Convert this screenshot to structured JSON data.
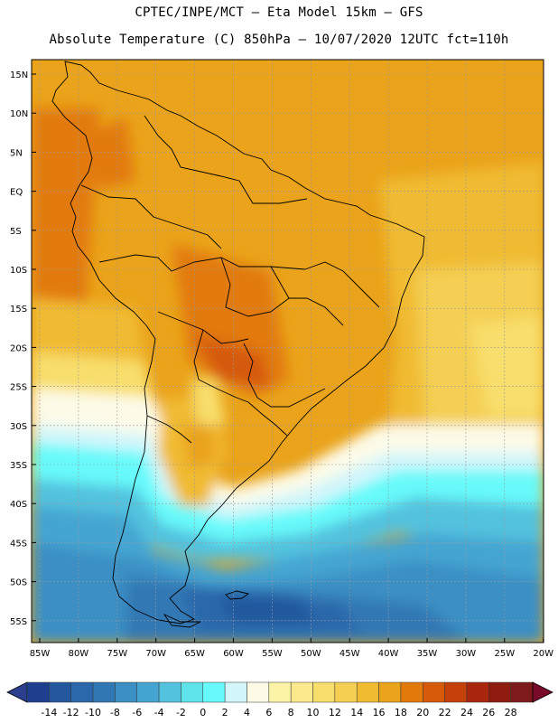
{
  "header": {
    "line1": "CPTEC/INPE/MCT –  Eta Model 15km – GFS",
    "line2": "Absolute Temperature (C) 850hPa – 10/07/2020 12UTC fct=110h"
  },
  "map": {
    "lat_labels": [
      "15N",
      "10N",
      "5N",
      "EQ",
      "5S",
      "10S",
      "15S",
      "20S",
      "25S",
      "30S",
      "35S",
      "40S",
      "45S",
      "50S",
      "55S"
    ],
    "lon_labels": [
      "85W",
      "80W",
      "75W",
      "70W",
      "65W",
      "60W",
      "55W",
      "50W",
      "45W",
      "40W",
      "35W",
      "30W",
      "25W",
      "20W"
    ]
  },
  "colorbar": {
    "labels": [
      "-14",
      "-12",
      "-10",
      "-8",
      "-6",
      "-4",
      "-2",
      "0",
      "2",
      "4",
      "6",
      "8",
      "10",
      "12",
      "14",
      "16",
      "18",
      "20",
      "22",
      "24",
      "26",
      "28"
    ],
    "colors": [
      "#1e3f8e",
      "#24589e",
      "#2b68ab",
      "#3078b4",
      "#3b8fc4",
      "#45a5d2",
      "#53c2de",
      "#5ee3ea",
      "#67fafa",
      "#d2f6fb",
      "#fdfbe8",
      "#fbf4a6",
      "#fbe98b",
      "#f8de6c",
      "#f4cf52",
      "#f0bb30",
      "#eaa31a",
      "#e27a0b",
      "#d65a07",
      "#c4420a",
      "#a8270d",
      "#8e1d10",
      "#7d1a1a"
    ]
  }
}
